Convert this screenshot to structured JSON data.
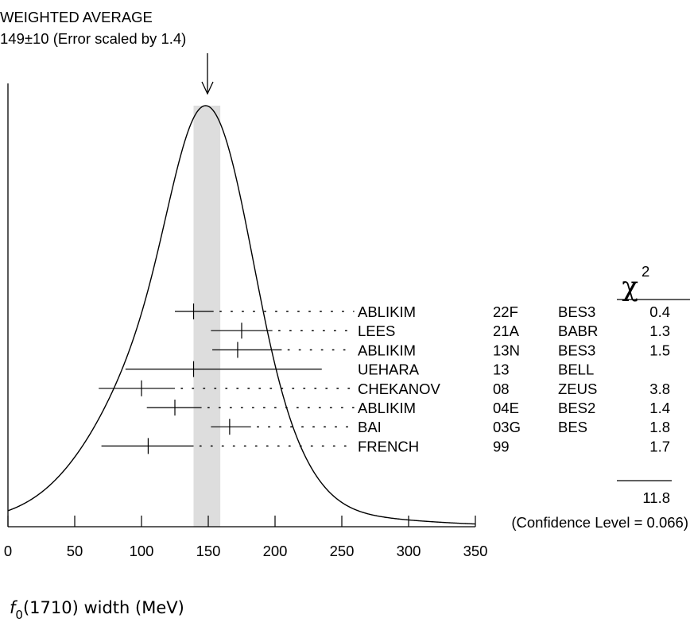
{
  "chart_data": {
    "type": "ideogram",
    "title": "WEIGHTED AVERAGE",
    "subtitle": "149±10 (Error scaled by 1.4)",
    "average": {
      "value": 149,
      "error": 10,
      "scale_factor": 1.4
    },
    "band": [
      139,
      159
    ],
    "xlabel_prefix": "f",
    "xlabel_sub": "0",
    "xlabel_suffix": "(1710) width (MeV)",
    "xlim": [
      0,
      350
    ],
    "xticks": [
      0,
      50,
      100,
      150,
      200,
      250,
      300,
      350
    ],
    "xtick_labels": [
      "0",
      "50",
      "100",
      "150",
      "200",
      "250",
      "300",
      "350"
    ],
    "chi2_header": "χ",
    "chi2_header_exp": "2",
    "chi2_total": "11.8",
    "confidence_label": "(Confidence Level = 0.066)",
    "measurements": [
      {
        "author": "ABLIKIM",
        "year": "22F",
        "experiment": "BES3",
        "value": 139,
        "low": 125,
        "high": 154,
        "chi2": "0.4",
        "dotted": true
      },
      {
        "author": "LEES",
        "year": "21A",
        "experiment": "BABR",
        "value": 175,
        "low": 152,
        "high": 198,
        "chi2": "1.3",
        "dotted": true
      },
      {
        "author": "ABLIKIM",
        "year": "13N",
        "experiment": "BES3",
        "value": 172,
        "low": 153,
        "high": 205,
        "chi2": "1.5",
        "dotted": true
      },
      {
        "author": "UEHARA",
        "year": "13",
        "experiment": "BELL",
        "value": 139,
        "low": 88,
        "high": 235,
        "chi2": "",
        "dotted": false
      },
      {
        "author": "CHEKANOV",
        "year": "08",
        "experiment": "ZEUS",
        "value": 100,
        "low": 68,
        "high": 125,
        "chi2": "3.8",
        "dotted": true
      },
      {
        "author": "ABLIKIM",
        "year": "04E",
        "experiment": "BES2",
        "value": 125,
        "low": 104,
        "high": 145,
        "chi2": "1.4",
        "dotted": true
      },
      {
        "author": "BAI",
        "year": "03G",
        "experiment": "BES",
        "value": 166,
        "low": 152,
        "high": 182,
        "chi2": "1.8",
        "dotted": true
      },
      {
        "author": "FRENCH",
        "year": "99",
        "experiment": "",
        "value": 105,
        "low": 70,
        "high": 139,
        "chi2": "1.7",
        "dotted": true
      }
    ]
  }
}
